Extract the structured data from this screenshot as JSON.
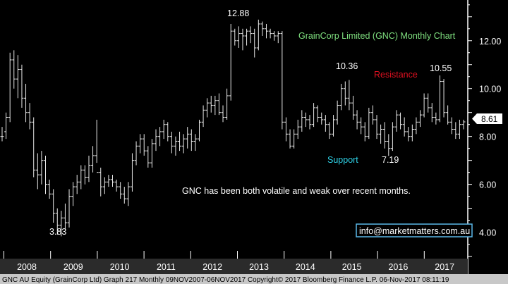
{
  "chart_data": {
    "type": "ohlc",
    "title": "GrainCorp Limited (GNC) Monthly Chart",
    "ylim": [
      2.9,
      13.7
    ],
    "yticks": [
      4.0,
      6.0,
      8.0,
      10.0,
      12.0
    ],
    "ytick_labels": [
      "4.00",
      "6.00",
      "8.00",
      "10.00",
      "12.00"
    ],
    "xtick_labels": [
      "2008",
      "2009",
      "2010",
      "2011",
      "2012",
      "2013",
      "2014",
      "2015",
      "2016",
      "2017"
    ],
    "last_price_label": "8.61",
    "annotations": {
      "high_2013": "12.88",
      "high_2015": "10.36",
      "high_2017": "10.55",
      "low_2009": "3.83",
      "low_2016": "7.19",
      "resistance": "Resistance",
      "support": "Support",
      "comment": "GNC has been both volatile and weak over recent months."
    },
    "series": [
      {
        "values": [
          [
            8.0,
            8.4,
            7.8,
            8.0
          ],
          [
            8.2,
            9.0,
            7.9,
            8.8
          ],
          [
            8.8,
            11.5,
            8.6,
            11.2
          ],
          [
            11.2,
            11.6,
            10.0,
            10.4
          ],
          [
            10.4,
            11.4,
            9.6,
            10.8
          ],
          [
            10.8,
            11.0,
            9.2,
            9.6
          ],
          [
            9.6,
            10.2,
            8.6,
            9.0
          ],
          [
            9.0,
            9.4,
            8.3,
            8.6
          ],
          [
            8.6,
            8.8,
            6.3,
            6.6
          ],
          [
            6.6,
            7.3,
            5.8,
            6.4
          ],
          [
            6.4,
            7.4,
            6.0,
            7.0
          ],
          [
            7.0,
            7.2,
            5.6,
            6.0
          ],
          [
            6.0,
            6.2,
            5.4,
            5.6
          ],
          [
            5.6,
            5.8,
            4.4,
            4.8
          ],
          [
            4.8,
            5.0,
            3.9,
            4.3
          ],
          [
            4.3,
            4.9,
            3.83,
            4.6
          ],
          [
            4.6,
            5.2,
            4.1,
            4.4
          ],
          [
            4.4,
            5.8,
            4.2,
            5.5
          ],
          [
            5.5,
            6.1,
            5.1,
            5.9
          ],
          [
            5.9,
            6.4,
            5.6,
            6.1
          ],
          [
            6.1,
            6.8,
            5.8,
            6.6
          ],
          [
            6.6,
            6.8,
            6.0,
            6.3
          ],
          [
            6.3,
            7.2,
            6.1,
            6.8
          ],
          [
            6.8,
            7.6,
            6.5,
            7.2
          ],
          [
            7.2,
            8.7,
            6.9,
            6.5
          ],
          [
            6.5,
            6.7,
            5.5,
            5.9
          ],
          [
            5.9,
            6.3,
            5.6,
            6.1
          ],
          [
            6.1,
            6.4,
            5.9,
            6.2
          ],
          [
            6.2,
            6.4,
            5.9,
            6.1
          ],
          [
            6.1,
            6.2,
            5.7,
            5.9
          ],
          [
            5.9,
            6.1,
            5.4,
            5.6
          ],
          [
            5.6,
            5.9,
            5.2,
            5.4
          ],
          [
            5.4,
            6.1,
            5.1,
            5.9
          ],
          [
            5.9,
            7.3,
            5.7,
            7.0
          ],
          [
            7.0,
            7.8,
            6.8,
            7.6
          ],
          [
            7.6,
            8.1,
            7.3,
            7.9
          ],
          [
            7.9,
            8.1,
            7.2,
            7.4
          ],
          [
            7.4,
            7.6,
            6.7,
            6.9
          ],
          [
            6.9,
            7.9,
            6.7,
            7.7
          ],
          [
            7.7,
            8.3,
            7.4,
            8.0
          ],
          [
            8.0,
            8.4,
            7.6,
            8.2
          ],
          [
            8.2,
            8.7,
            7.9,
            8.5
          ],
          [
            8.5,
            8.6,
            7.8,
            8.0
          ],
          [
            8.0,
            8.2,
            7.3,
            7.6
          ],
          [
            7.6,
            8.0,
            7.2,
            7.8
          ],
          [
            7.8,
            8.2,
            7.4,
            7.6
          ],
          [
            7.6,
            8.1,
            7.3,
            7.9
          ],
          [
            7.9,
            8.4,
            7.5,
            8.1
          ],
          [
            8.1,
            8.3,
            7.4,
            7.8
          ],
          [
            7.8,
            8.1,
            7.4,
            7.9
          ],
          [
            7.9,
            8.7,
            7.8,
            8.6
          ],
          [
            8.6,
            9.3,
            8.4,
            9.1
          ],
          [
            9.1,
            9.6,
            8.8,
            9.4
          ],
          [
            9.4,
            9.7,
            9.0,
            9.3
          ],
          [
            9.3,
            9.7,
            8.9,
            9.5
          ],
          [
            9.5,
            9.8,
            8.9,
            9.0
          ],
          [
            9.0,
            9.3,
            8.6,
            8.8
          ],
          [
            8.8,
            10.0,
            8.7,
            9.7
          ],
          [
            9.7,
            12.7,
            9.5,
            12.4
          ],
          [
            12.4,
            12.5,
            11.8,
            12.0
          ],
          [
            12.0,
            12.6,
            11.7,
            12.3
          ],
          [
            12.3,
            12.5,
            11.6,
            12.2
          ],
          [
            12.2,
            12.5,
            11.8,
            12.4
          ],
          [
            12.4,
            12.6,
            11.9,
            12.3
          ],
          [
            12.3,
            12.5,
            11.3,
            11.7
          ],
          [
            11.7,
            12.88,
            11.6,
            12.7
          ],
          [
            12.7,
            12.8,
            12.2,
            12.5
          ],
          [
            12.5,
            12.7,
            12.1,
            12.4
          ],
          [
            12.4,
            12.5,
            12.1,
            12.3
          ],
          [
            12.3,
            12.4,
            12.0,
            12.2
          ],
          [
            12.2,
            12.4,
            11.9,
            12.3
          ],
          [
            12.3,
            12.4,
            8.3,
            8.6
          ],
          [
            8.6,
            8.8,
            7.8,
            8.1
          ],
          [
            8.1,
            8.3,
            7.5,
            7.6
          ],
          [
            7.6,
            8.3,
            7.5,
            8.1
          ],
          [
            8.1,
            8.7,
            7.9,
            8.4
          ],
          [
            8.4,
            9.1,
            8.2,
            8.8
          ],
          [
            8.8,
            9.0,
            8.4,
            8.7
          ],
          [
            8.7,
            8.9,
            8.3,
            8.5
          ],
          [
            8.5,
            9.4,
            8.4,
            9.2
          ],
          [
            9.2,
            9.3,
            8.6,
            8.8
          ],
          [
            8.8,
            9.0,
            8.5,
            8.7
          ],
          [
            8.7,
            8.9,
            8.2,
            8.5
          ],
          [
            8.5,
            8.6,
            7.9,
            8.1
          ],
          [
            8.1,
            8.9,
            8.0,
            8.7
          ],
          [
            8.7,
            9.5,
            8.5,
            9.3
          ],
          [
            9.3,
            10.2,
            9.1,
            10.0
          ],
          [
            10.0,
            10.3,
            9.3,
            9.6
          ],
          [
            9.6,
            10.36,
            9.1,
            9.4
          ],
          [
            9.4,
            9.7,
            8.7,
            8.9
          ],
          [
            8.9,
            9.1,
            8.3,
            8.6
          ],
          [
            8.6,
            8.8,
            8.1,
            8.4
          ],
          [
            8.4,
            8.6,
            7.8,
            8.0
          ],
          [
            8.0,
            9.2,
            7.9,
            9.0
          ],
          [
            9.0,
            9.3,
            8.5,
            8.7
          ],
          [
            8.7,
            8.9,
            7.9,
            8.1
          ],
          [
            8.1,
            8.5,
            7.7,
            8.3
          ],
          [
            8.3,
            8.6,
            7.5,
            7.8
          ],
          [
            7.8,
            8.1,
            7.19,
            7.5
          ],
          [
            7.5,
            8.6,
            7.4,
            8.4
          ],
          [
            8.4,
            9.1,
            8.2,
            8.9
          ],
          [
            8.9,
            9.0,
            8.3,
            8.5
          ],
          [
            8.5,
            8.8,
            8.0,
            8.2
          ],
          [
            8.2,
            8.4,
            7.8,
            8.0
          ],
          [
            8.0,
            8.5,
            7.8,
            8.3
          ],
          [
            8.3,
            8.8,
            8.1,
            8.6
          ],
          [
            8.6,
            9.1,
            8.4,
            8.9
          ],
          [
            8.9,
            9.8,
            8.8,
            9.6
          ],
          [
            9.6,
            9.8,
            9.0,
            9.2
          ],
          [
            9.2,
            9.4,
            8.6,
            8.8
          ],
          [
            8.8,
            9.0,
            8.5,
            8.7
          ],
          [
            8.7,
            10.55,
            8.6,
            10.3
          ],
          [
            10.3,
            10.4,
            8.8,
            9.0
          ],
          [
            9.0,
            9.3,
            8.5,
            8.6
          ],
          [
            8.6,
            8.8,
            8.1,
            8.3
          ],
          [
            8.3,
            8.6,
            7.9,
            8.1
          ],
          [
            8.1,
            8.7,
            7.9,
            8.5
          ],
          [
            8.5,
            8.7,
            8.3,
            8.61
          ]
        ]
      }
    ]
  },
  "footer": {
    "email": "info@marketmatters.com.au",
    "status_line": "GNC AU Equity (GrainCorp Ltd) Graph 217  Monthly 09NOV2007-06NOV2017 Copyright© 2017 Bloomberg Finance L.P. 06-Nov-2017 08:11:19"
  },
  "colors": {
    "bar": "#e8e8e8",
    "axis": "#ffffff",
    "title": "#7fe07f",
    "resistance": "#e01020",
    "support": "#2fd3e8",
    "year_band": "#2b2b2b",
    "status_band": "#c8c8c8",
    "email_border": "#5ab7e8",
    "price_label_bg": "#ffffff"
  }
}
